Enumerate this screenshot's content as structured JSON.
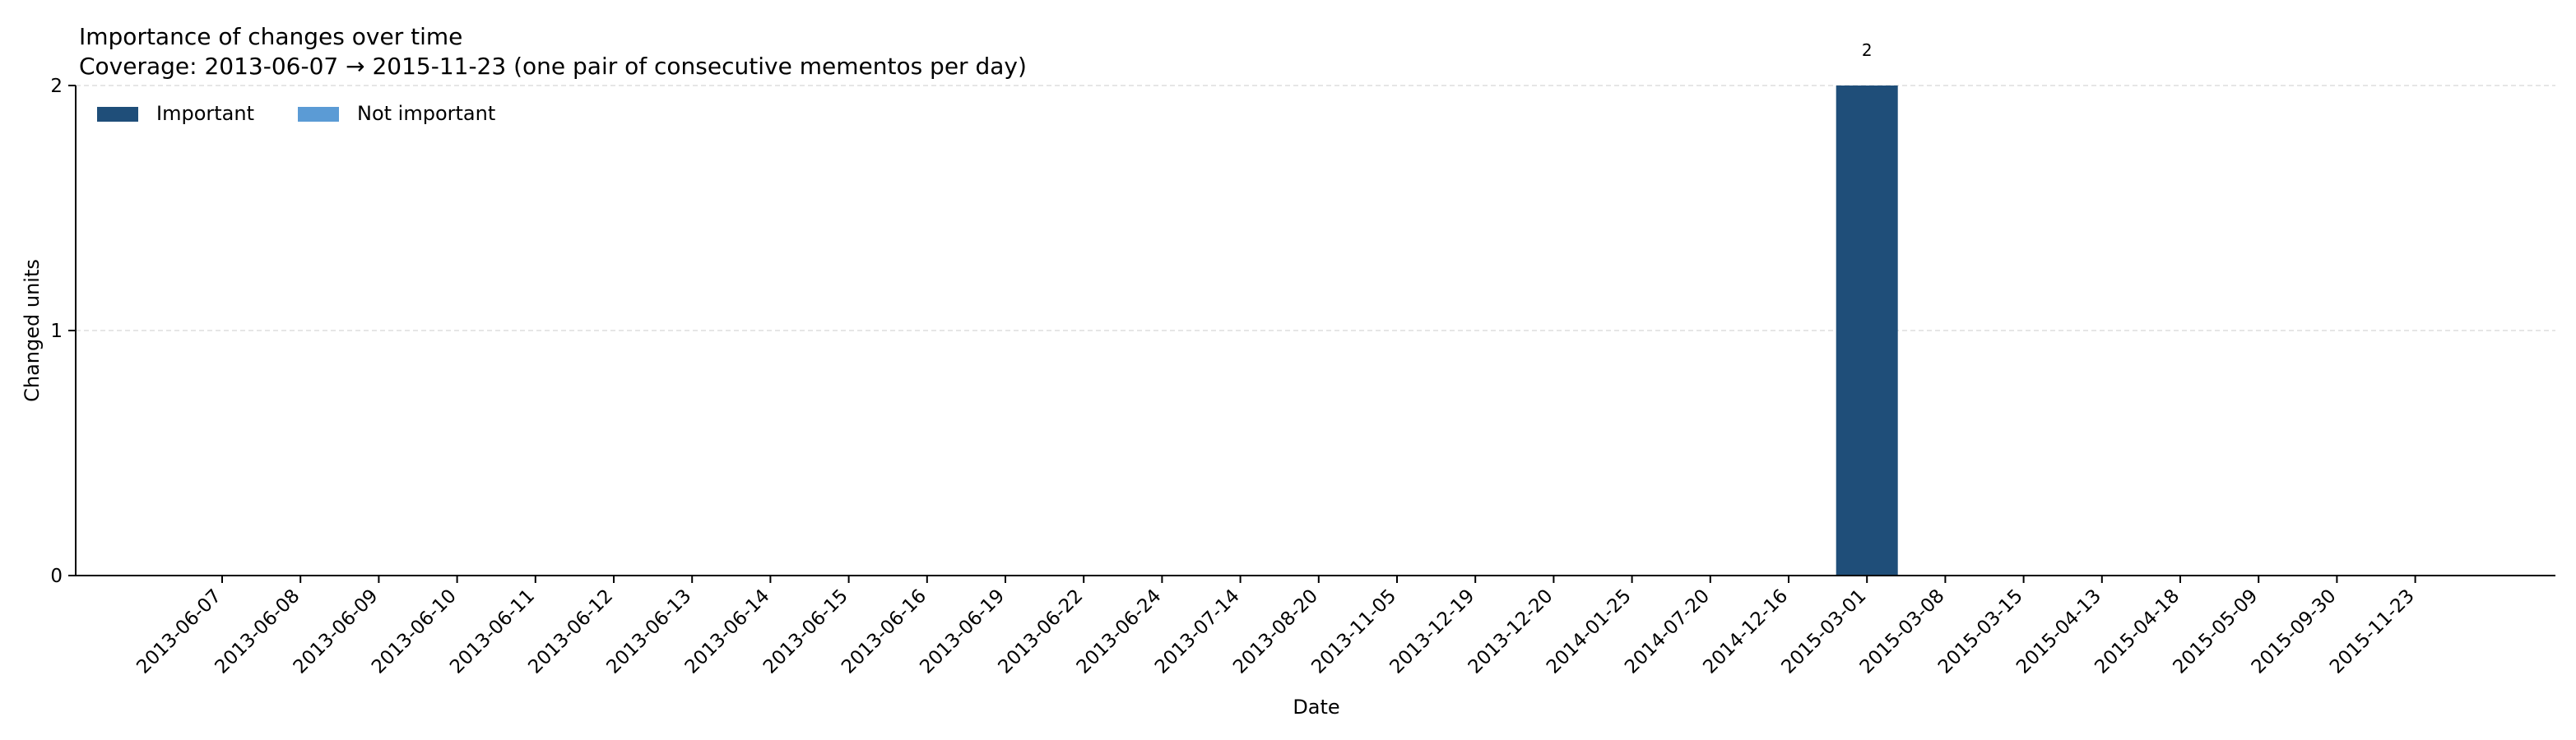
{
  "chart_data": {
    "type": "bar",
    "stacked": true,
    "title": "Importance of changes over time",
    "subtitle": "Coverage: 2013-06-07 → 2015-11-23 (one pair of consecutive mementos per day)",
    "xlabel": "Date",
    "ylabel": "Changed units",
    "ylim": [
      0,
      2
    ],
    "yticks": [
      "0",
      "1",
      "2"
    ],
    "grid": "horizontal-dashed",
    "legend_position": "top-left",
    "categories": [
      "2013-06-07",
      "2013-06-08",
      "2013-06-09",
      "2013-06-10",
      "2013-06-11",
      "2013-06-12",
      "2013-06-13",
      "2013-06-14",
      "2013-06-15",
      "2013-06-16",
      "2013-06-19",
      "2013-06-22",
      "2013-06-24",
      "2013-07-14",
      "2013-08-20",
      "2013-11-05",
      "2013-12-19",
      "2013-12-20",
      "2014-01-25",
      "2014-07-20",
      "2014-12-16",
      "2015-03-01",
      "2015-03-08",
      "2015-03-15",
      "2015-04-13",
      "2015-04-18",
      "2015-05-09",
      "2015-09-30",
      "2015-11-23"
    ],
    "series": [
      {
        "name": "Important",
        "color": "#1f4e79",
        "values": [
          0,
          0,
          0,
          0,
          0,
          0,
          0,
          0,
          0,
          0,
          0,
          0,
          0,
          0,
          0,
          0,
          0,
          0,
          0,
          0,
          0,
          2,
          0,
          0,
          0,
          0,
          0,
          0,
          0
        ]
      },
      {
        "name": "Not important",
        "color": "#5b9bd5",
        "values": [
          0,
          0,
          0,
          0,
          0,
          0,
          0,
          0,
          0,
          0,
          0,
          0,
          0,
          0,
          0,
          0,
          0,
          0,
          0,
          0,
          0,
          0,
          0,
          0,
          0,
          0,
          0,
          0,
          0
        ]
      }
    ],
    "data_labels": [
      {
        "category": "2015-03-01",
        "text": "2"
      }
    ]
  }
}
